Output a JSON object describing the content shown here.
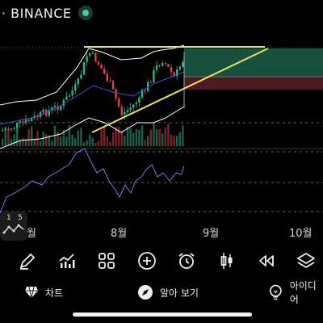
{
  "header": {
    "exchange_label": "· BINANCE",
    "live_dot_color": "#3fd0a0"
  },
  "chart": {
    "candle_up_color": "#2fb38b",
    "candle_down_color": "#e0424f",
    "bollinger_color": "#ffffff",
    "ma_color": "#4b4fd6",
    "rsi_color": "#7a78e8",
    "trendline_color": "#e9e463",
    "long_zone_color": "#1f6b52",
    "short_zone_color": "#5a1e24"
  },
  "interval_badge": {
    "top": "1",
    "top_right": "5"
  },
  "x_axis": {
    "months": [
      "월",
      "8월",
      "9월",
      "10월"
    ]
  },
  "toolbar": {
    "tools": [
      "draw-icon",
      "indicator-icon",
      "layout-grid-icon",
      "add-circle-icon",
      "alarm-clock-icon",
      "candlestick-icon",
      "replay-icon",
      "layers-icon"
    ]
  },
  "bottom_nav": {
    "items": [
      {
        "label": "차트",
        "icon": "chart-diamond-icon"
      },
      {
        "label": "알아 보기",
        "icon": "explore-compass-icon"
      },
      {
        "label": "아이디어",
        "icon": "ideas-bulb-icon"
      }
    ]
  }
}
